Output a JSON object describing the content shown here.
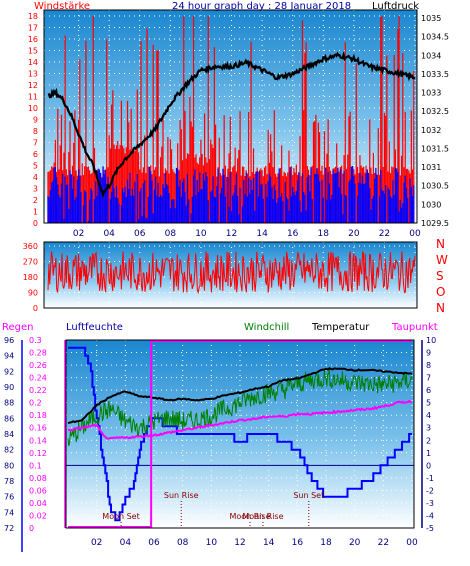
{
  "header": {
    "left_label": "Windstärke",
    "title": "24 hour graph day : 28 Januar 2018",
    "right_label": "Luftdruck"
  },
  "colors": {
    "wind": "#ff0000",
    "gust_base": "#0000ff",
    "pressure": "#000000",
    "winddir": "#ff0000",
    "humidity": "#0000ff",
    "windchill": "#008000",
    "temperature": "#000000",
    "dewpoint": "#ff00ff",
    "rain": "#ff00ff",
    "gradient_top": "#1f8fd4",
    "gradient_bottom": "#ffffff"
  },
  "chart_data": [
    {
      "type": "line",
      "panel": "wind-pressure",
      "x_ticks": [
        "02",
        "04",
        "06",
        "08",
        "10",
        "12",
        "14",
        "16",
        "18",
        "20",
        "22",
        "00"
      ],
      "left_axis": {
        "label": "Windstärke",
        "ylim": [
          0,
          18
        ],
        "ticks": [
          0,
          1,
          2,
          3,
          4,
          5,
          6,
          7,
          8,
          9,
          10,
          11,
          12,
          13,
          14,
          15,
          16,
          17,
          18
        ]
      },
      "right_axis": {
        "label": "Luftdruck",
        "ylim": [
          1029.5,
          1035
        ],
        "ticks": [
          "1035",
          "1034.5",
          "1034",
          "1033.5",
          "1033",
          "1032.5",
          "1032",
          "1031.5",
          "1031",
          "1030.5",
          "1030",
          "1029.5"
        ]
      },
      "series": [
        {
          "name": "Luftdruck",
          "axis": "right",
          "x": [
            0,
            0.5,
            1,
            1.5,
            2,
            2.5,
            3,
            3.3,
            3.6,
            4,
            4.5,
            5,
            6,
            7,
            8,
            9,
            10,
            11,
            12,
            13,
            14,
            15,
            16,
            17,
            18,
            19,
            20,
            21,
            22,
            23,
            24
          ],
          "y": [
            1032.9,
            1033.0,
            1032.8,
            1032.4,
            1031.9,
            1031.4,
            1031.0,
            1030.6,
            1030.3,
            1030.5,
            1030.9,
            1031.2,
            1031.6,
            1032.0,
            1032.7,
            1033.2,
            1033.6,
            1033.7,
            1033.7,
            1033.8,
            1033.6,
            1033.4,
            1033.5,
            1033.7,
            1033.9,
            1034.0,
            1033.9,
            1033.7,
            1033.6,
            1033.5,
            1033.4
          ]
        }
      ]
    },
    {
      "type": "line",
      "panel": "wind-direction",
      "ylim": [
        0,
        360
      ],
      "y_ticks": [
        0,
        90,
        180,
        270,
        360
      ],
      "right_labels": [
        "N",
        "W",
        "S",
        "O",
        "N"
      ],
      "series": [
        {
          "name": "",
          "mean_degrees": 210,
          "range": [
            60,
            350
          ]
        }
      ]
    },
    {
      "type": "line",
      "panel": "climate",
      "x_ticks": [
        "02",
        "04",
        "06",
        "08",
        "10",
        "12",
        "14",
        "16",
        "18",
        "20",
        "22",
        "00"
      ],
      "legend": [
        "Regen",
        "Luftfeuchte",
        "Windchill",
        "Temperatur",
        "Taupunkt"
      ],
      "rain_axis": {
        "ylim": [
          0,
          0.3
        ],
        "ticks": [
          "0.3",
          "0.28",
          "0.26",
          "0.24",
          "0.22",
          "0.2",
          "0.18",
          "0.16",
          "0.14",
          "0.12",
          "0.1",
          "0.08",
          "0.06",
          "0.04",
          "0.02",
          "0"
        ]
      },
      "humidity_axis": {
        "ylim": [
          72,
          96
        ],
        "ticks": [
          96,
          94,
          92,
          90,
          88,
          86,
          84,
          82,
          80,
          78,
          76,
          74,
          72
        ]
      },
      "temp_axis": {
        "ylim": [
          -5,
          10
        ],
        "ticks": [
          10,
          9,
          8,
          7,
          6,
          5,
          4,
          3,
          2,
          1,
          0,
          -1,
          -2,
          -3,
          -4,
          -5
        ]
      },
      "events": [
        {
          "label": "Moon Set",
          "hour": 3.7
        },
        {
          "label": "Sun Rise",
          "hour": 7.9
        },
        {
          "label": "Moon Rise",
          "hour": 12.7
        },
        {
          "label": "Sun Set",
          "hour": 16.8
        },
        {
          "label": "Moon Rise",
          "hour": 13.6
        }
      ],
      "series": [
        {
          "name": "Temperatur",
          "x": [
            0,
            1,
            2,
            3,
            4,
            5,
            6,
            7,
            8,
            9,
            10,
            11,
            12,
            13,
            14,
            15,
            16,
            17,
            18,
            19,
            20,
            21,
            22,
            23,
            24
          ],
          "y": [
            3.4,
            3.6,
            4.8,
            5.5,
            5.9,
            5.5,
            5.4,
            5.2,
            5.3,
            5.2,
            5.3,
            5.6,
            5.8,
            6.1,
            6.3,
            6.8,
            6.9,
            7.3,
            7.7,
            7.7,
            7.6,
            7.6,
            7.5,
            7.4,
            7.3
          ]
        },
        {
          "name": "Windchill",
          "x": [
            0,
            1,
            2,
            3,
            4,
            5,
            6,
            7,
            8,
            9,
            10,
            11,
            12,
            13,
            14,
            15,
            16,
            17,
            18,
            19,
            20,
            21,
            22,
            23,
            24
          ],
          "y": [
            2.0,
            3.0,
            4.0,
            4.5,
            3.5,
            3.0,
            3.5,
            3.8,
            3.5,
            3.6,
            4.0,
            4.5,
            5.0,
            5.5,
            5.8,
            6.0,
            6.5,
            6.8,
            7.0,
            6.8,
            6.6,
            6.5,
            6.4,
            6.6,
            6.8
          ]
        },
        {
          "name": "Taupunkt",
          "x": [
            0,
            1,
            2,
            2.5,
            3,
            3.5,
            4,
            5,
            6,
            7,
            8,
            9,
            10,
            11,
            12,
            13,
            14,
            15,
            16,
            17,
            18,
            19,
            20,
            21,
            22,
            23,
            24
          ],
          "y": [
            2.8,
            3.0,
            3.2,
            2.3,
            2.1,
            2.2,
            2.2,
            2.3,
            2.4,
            2.6,
            2.8,
            3.0,
            3.2,
            3.4,
            3.6,
            3.7,
            3.9,
            3.9,
            4.1,
            4.1,
            4.2,
            4.3,
            4.4,
            4.5,
            4.7,
            5.0,
            5.1
          ]
        },
        {
          "name": "Luftfeuchte",
          "x": [
            0,
            1,
            1.5,
            2,
            2.5,
            3,
            3.5,
            4,
            4.5,
            5,
            5.5,
            6,
            7,
            8,
            9,
            10,
            11,
            12,
            13,
            14,
            15,
            16,
            16.8,
            17.5,
            18,
            19,
            20,
            21,
            22,
            23,
            24
          ],
          "y": [
            95,
            95,
            93,
            86,
            80,
            74,
            73,
            76,
            77,
            82,
            85,
            86,
            85,
            84,
            84,
            84,
            84,
            83,
            84,
            84,
            83,
            82,
            79,
            77,
            76,
            76,
            77,
            78,
            80,
            82,
            84
          ]
        },
        {
          "name": "Regen",
          "x": [
            0,
            5.8,
            24
          ],
          "y": [
            0,
            0.3,
            0.3
          ]
        }
      ]
    }
  ]
}
